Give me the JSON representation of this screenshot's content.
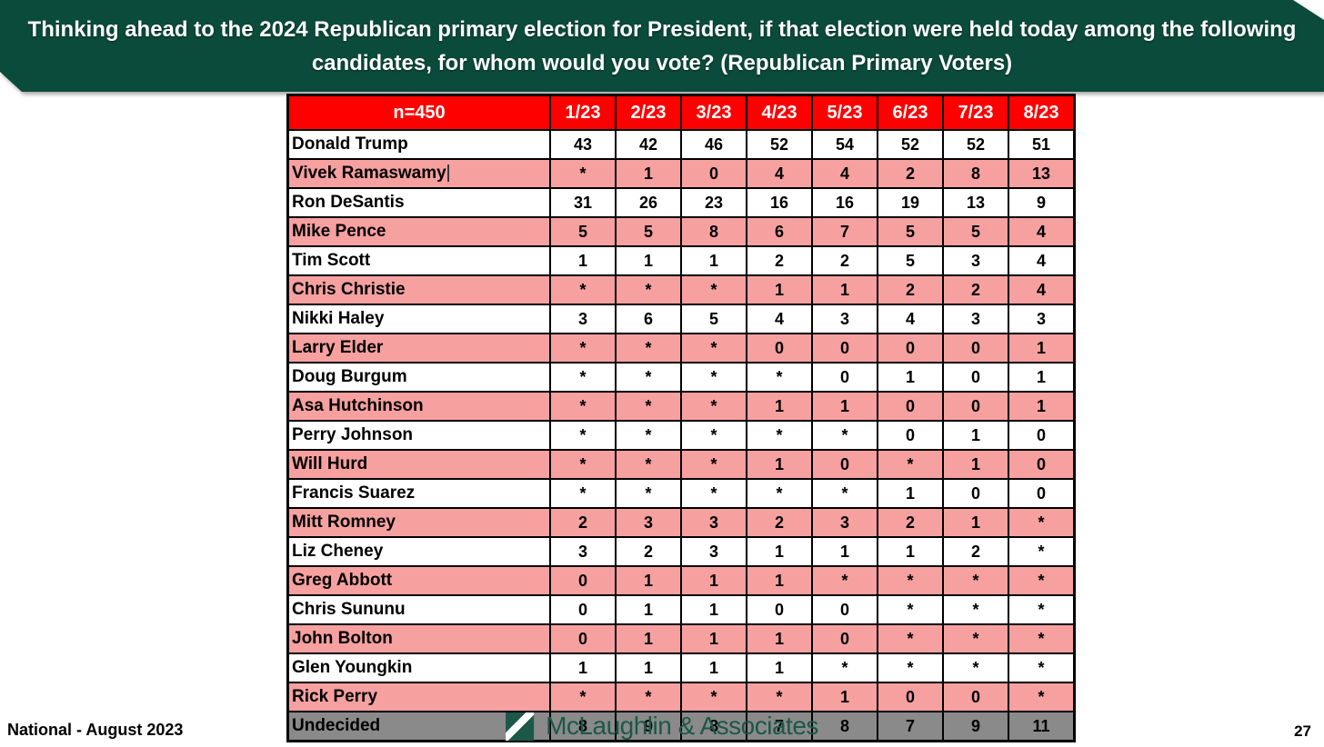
{
  "slide": {
    "title": "Thinking ahead to the 2024 Republican primary election for President, if that election were held today among the following candidates, for whom would you vote? (Republican Primary Voters)",
    "footer_left": "National - August 2023",
    "logo_text": "McLaughlin & Associates",
    "page_number": "27"
  },
  "table": {
    "corner_label": "n=450",
    "columns": [
      "1/23",
      "2/23",
      "3/23",
      "4/23",
      "5/23",
      "6/23",
      "7/23",
      "8/23"
    ],
    "rows": [
      {
        "name": "Donald Trump",
        "values": [
          "43",
          "42",
          "46",
          "52",
          "54",
          "52",
          "52",
          "51"
        ],
        "style": "white"
      },
      {
        "name": "Vivek Ramaswamy",
        "values": [
          "*",
          "1",
          "0",
          "4",
          "4",
          "2",
          "8",
          "13"
        ],
        "style": "pink",
        "text_cursor": true
      },
      {
        "name": "Ron DeSantis",
        "values": [
          "31",
          "26",
          "23",
          "16",
          "16",
          "19",
          "13",
          "9"
        ],
        "style": "white"
      },
      {
        "name": "Mike Pence",
        "values": [
          "5",
          "5",
          "8",
          "6",
          "7",
          "5",
          "5",
          "4"
        ],
        "style": "pink"
      },
      {
        "name": "Tim Scott",
        "values": [
          "1",
          "1",
          "1",
          "2",
          "2",
          "5",
          "3",
          "4"
        ],
        "style": "white"
      },
      {
        "name": "Chris Christie",
        "values": [
          "*",
          "*",
          "*",
          "1",
          "1",
          "2",
          "2",
          "4"
        ],
        "style": "pink"
      },
      {
        "name": "Nikki Haley",
        "values": [
          "3",
          "6",
          "5",
          "4",
          "3",
          "4",
          "3",
          "3"
        ],
        "style": "white"
      },
      {
        "name": "Larry Elder",
        "values": [
          "*",
          "*",
          "*",
          "0",
          "0",
          "0",
          "0",
          "1"
        ],
        "style": "pink"
      },
      {
        "name": "Doug Burgum",
        "values": [
          "*",
          "*",
          "*",
          "*",
          "0",
          "1",
          "0",
          "1"
        ],
        "style": "white"
      },
      {
        "name": "Asa Hutchinson",
        "values": [
          "*",
          "*",
          "*",
          "1",
          "1",
          "0",
          "0",
          "1"
        ],
        "style": "pink"
      },
      {
        "name": "Perry Johnson",
        "values": [
          "*",
          "*",
          "*",
          "*",
          "*",
          "0",
          "1",
          "0"
        ],
        "style": "white"
      },
      {
        "name": "Will Hurd",
        "values": [
          "*",
          "*",
          "*",
          "1",
          "0",
          "*",
          "1",
          "0"
        ],
        "style": "pink"
      },
      {
        "name": "Francis Suarez",
        "values": [
          "*",
          "*",
          "*",
          "*",
          "*",
          "1",
          "0",
          "0"
        ],
        "style": "white"
      },
      {
        "name": "Mitt Romney",
        "values": [
          "2",
          "3",
          "3",
          "2",
          "3",
          "2",
          "1",
          "*"
        ],
        "style": "pink"
      },
      {
        "name": "Liz Cheney",
        "values": [
          "3",
          "2",
          "3",
          "1",
          "1",
          "1",
          "2",
          "*"
        ],
        "style": "white"
      },
      {
        "name": "Greg Abbott",
        "values": [
          "0",
          "1",
          "1",
          "1",
          "*",
          "*",
          "*",
          "*"
        ],
        "style": "pink"
      },
      {
        "name": "Chris Sununu",
        "values": [
          "0",
          "1",
          "1",
          "0",
          "0",
          "*",
          "*",
          "*"
        ],
        "style": "white"
      },
      {
        "name": "John Bolton",
        "values": [
          "0",
          "1",
          "1",
          "1",
          "0",
          "*",
          "*",
          "*"
        ],
        "style": "pink"
      },
      {
        "name": "Glen Youngkin",
        "values": [
          "1",
          "1",
          "1",
          "1",
          "*",
          "*",
          "*",
          "*"
        ],
        "style": "white"
      },
      {
        "name": "Rick Perry",
        "values": [
          "*",
          "*",
          "*",
          "*",
          "1",
          "0",
          "0",
          "*"
        ],
        "style": "pink"
      },
      {
        "name": "Undecided",
        "values": [
          "8",
          "9",
          "8",
          "7",
          "8",
          "7",
          "9",
          "11"
        ],
        "style": "gray"
      }
    ]
  },
  "colors": {
    "banner_green": "#0B4B3B",
    "header_red": "#FF0000",
    "row_pink": "#F7A0A0",
    "undecided_gray": "#8A8A8A",
    "logo_green": "#1C5748",
    "border_black": "#000000"
  }
}
